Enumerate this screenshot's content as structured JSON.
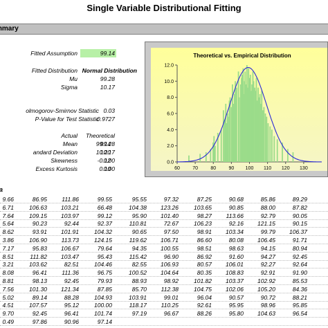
{
  "title": "Single Variable Distributional Fitting",
  "summary_label": "mmary",
  "fitted_assumption": {
    "label": "Fitted Assumption",
    "value": "99.14"
  },
  "fitted_distribution": {
    "label": "Fitted Distribution",
    "value": "Normal Distribution"
  },
  "mu": {
    "label": "Mu",
    "value": "99.28"
  },
  "sigma": {
    "label": "Sigma",
    "value": "10.17"
  },
  "ks": {
    "label": "olmogorov-Smirnov Statistic",
    "value": "0.03"
  },
  "pvalue": {
    "label": "P-Value for Test Statistic",
    "value": "0.9727"
  },
  "moments": {
    "header_actual": "Actual",
    "header_theoretical": "Theoretical",
    "rows": [
      {
        "label": "Mean",
        "actual": "99.14",
        "theoretical": "99.28"
      },
      {
        "label": "andard Deviation",
        "actual": "10.20",
        "theoretical": "10.17"
      },
      {
        "label": "Skewness",
        "actual": "-0.12",
        "theoretical": "0.00"
      },
      {
        "label": "Excess Kurtosis",
        "actual": "0.10",
        "theoretical": "0.00"
      }
    ]
  },
  "data_heading": "ta",
  "data_rows": [
    [
      "9.66",
      "86.95",
      "111.86",
      "99.55",
      "95.55",
      "97.32",
      "87.25",
      "90.68",
      "85.86",
      "89.29"
    ],
    [
      "6.71",
      "106.63",
      "103.21",
      "66.48",
      "104.38",
      "123.26",
      "103.65",
      "90.85",
      "88.00",
      "87.82"
    ],
    [
      "7.64",
      "109.15",
      "103.97",
      "99.12",
      "95.90",
      "101.40",
      "98.27",
      "113.66",
      "92.79",
      "90.05"
    ],
    [
      "5.64",
      "90.23",
      "92.44",
      "92.37",
      "110.81",
      "72.67",
      "106.23",
      "92.16",
      "121.15",
      "90.15"
    ],
    [
      "8.62",
      "93.91",
      "101.91",
      "104.32",
      "90.65",
      "97.50",
      "98.91",
      "103.34",
      "99.79",
      "106.37"
    ],
    [
      "3.86",
      "106.90",
      "113.73",
      "124.15",
      "119.62",
      "106.71",
      "86.60",
      "80.08",
      "106.45",
      "91.71"
    ],
    [
      "7.17",
      "95.83",
      "106.67",
      "79.64",
      "94.35",
      "100.55",
      "98.51",
      "98.63",
      "94.15",
      "80.94"
    ],
    [
      "8.51",
      "111.82",
      "103.47",
      "95.43",
      "115.42",
      "96.90",
      "86.92",
      "91.60",
      "94.27",
      "92.45"
    ],
    [
      "3.21",
      "103.62",
      "82.51",
      "104.46",
      "82.55",
      "106.93",
      "80.57",
      "106.01",
      "92.27",
      "92.64"
    ],
    [
      "8.08",
      "96.41",
      "111.36",
      "96.75",
      "100.52",
      "104.64",
      "80.35",
      "108.83",
      "92.91",
      "91.90"
    ],
    [
      "8.81",
      "98.13",
      "92.45",
      "79.93",
      "88.93",
      "98.92",
      "101.82",
      "103.37",
      "102.92",
      "85.53"
    ],
    [
      "7.56",
      "101.30",
      "121.34",
      "87.85",
      "85.70",
      "112.38",
      "104.75",
      "102.06",
      "105.20",
      "84.36"
    ],
    [
      "5.02",
      "89.14",
      "88.28",
      "104.93",
      "103.91",
      "99.01",
      "96.04",
      "90.57",
      "90.72",
      "88.21"
    ],
    [
      "4.51",
      "107.57",
      "95.12",
      "100.00",
      "118.17",
      "110.25",
      "92.61",
      "95.95",
      "98.96",
      "95.85"
    ],
    [
      "9.70",
      "92.45",
      "96.41",
      "101.74",
      "97.19",
      "96.67",
      "88.26",
      "95.80",
      "104.63",
      "96.54"
    ],
    [
      "0.49",
      "97.86",
      "90.96",
      "97.14",
      "",
      "",
      "",
      "",
      "",
      ""
    ]
  ],
  "chart_data": {
    "type": "bar",
    "title": "Theoretical vs. Empirical Distribution",
    "xlim": [
      60,
      140
    ],
    "ylim": [
      0,
      12
    ],
    "xticks": [
      "60",
      "70",
      "80",
      "90",
      "100",
      "110",
      "120",
      "130"
    ],
    "yticks": [
      "0.0",
      "2.0",
      "4.0",
      "6.0",
      "8.0",
      "10.0",
      "12.0"
    ],
    "series": [
      {
        "type": "bar",
        "x": [
          66.5,
          72.7,
          76.0,
          78.5,
          79.9,
          80.4,
          81.0,
          82.5,
          84.4,
          85.6,
          86.3,
          86.9,
          87.3,
          87.9,
          88.2,
          88.9,
          89.3,
          90.1,
          90.6,
          91.1,
          91.7,
          92.2,
          92.5,
          92.9,
          93.9,
          94.3,
          95.1,
          95.6,
          95.9,
          96.5,
          96.8,
          97.3,
          97.6,
          98.1,
          98.6,
          99.1,
          99.5,
          99.9,
          100.5,
          101.0,
          101.4,
          101.9,
          102.3,
          102.9,
          103.4,
          103.8,
          104.3,
          104.8,
          105.2,
          105.8,
          106.3,
          106.8,
          107.3,
          108.0,
          108.8,
          109.5,
          110.3,
          111.4,
          112.4,
          113.7,
          115.4,
          118.2,
          121.2,
          124.1
        ],
        "values": [
          0.8,
          1.0,
          1.2,
          1.6,
          2.4,
          3.2,
          2.0,
          3.6,
          4.0,
          6.4,
          5.2,
          7.2,
          4.8,
          6.0,
          5.6,
          7.6,
          8.0,
          6.8,
          9.6,
          7.2,
          8.4,
          10.0,
          8.8,
          9.2,
          11.2,
          8.0,
          9.6,
          10.4,
          10.8,
          11.6,
          8.4,
          10.0,
          11.2,
          9.6,
          12.0,
          9.2,
          11.6,
          10.4,
          10.8,
          8.8,
          9.6,
          11.2,
          10.0,
          9.2,
          8.8,
          10.4,
          7.6,
          9.2,
          8.0,
          8.4,
          7.2,
          8.8,
          6.4,
          6.8,
          6.0,
          5.6,
          4.8,
          4.4,
          4.0,
          3.2,
          2.8,
          2.4,
          1.6,
          1.2
        ]
      },
      {
        "type": "line",
        "mu": 99.28,
        "sigma": 10.17,
        "peak": 11.7
      }
    ]
  },
  "colors": {
    "fitted_highlight": "#b7f0a6",
    "chart_bg_top": "#ffff9a",
    "chart_bg_bottom": "#f5f5c8",
    "bars": "#9bdc8a",
    "curve": "#2a2ad8"
  }
}
